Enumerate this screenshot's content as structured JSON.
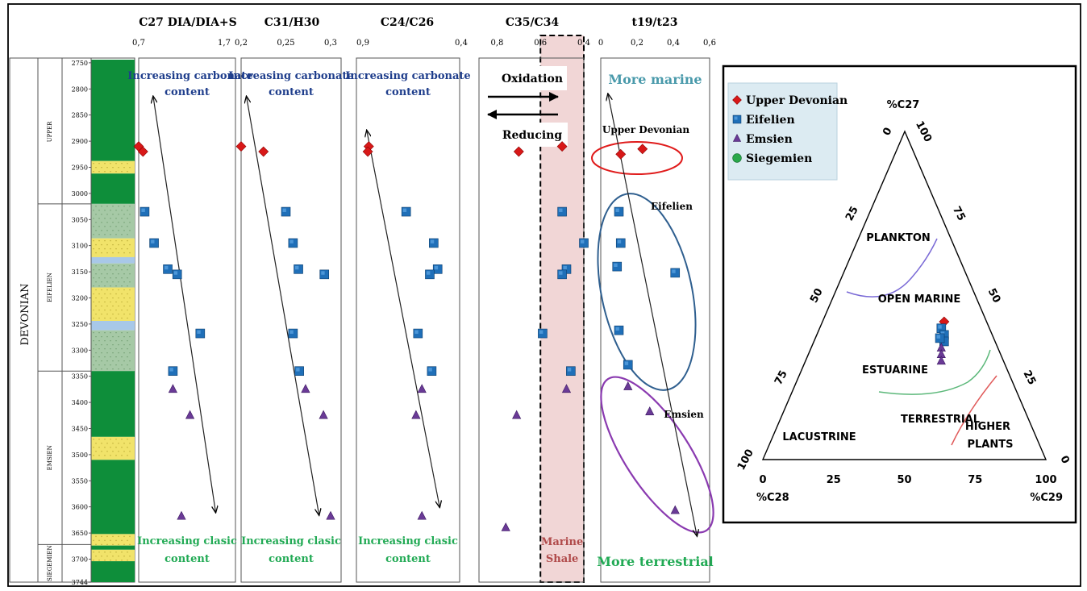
{
  "colors": {
    "upper_devonian": "#d81818",
    "eifelien": "#1f6fb8",
    "emsien": "#6a3a96",
    "siegemien": "#2aa84a",
    "text_blue": "#1f3e8c",
    "text_green": "#22aa55",
    "text_marine": "#4a9aab",
    "strat_green": "#0e8e3a",
    "strat_light": "#a6c9a6",
    "strat_yellow": "#f1e36a",
    "strat_blue": "#a8c8e8",
    "shale_fill": "#f1d6d6",
    "shale_text": "#b04a4a",
    "legend_bg": "#dcebf2",
    "plankton_curve": "#7a6ad6",
    "estuarine_curve": "#5cb87a",
    "higher_plants_curve": "#e05a5a",
    "ellipse_upper": "#e01c1c",
    "ellipse_eifelien": "#2f5f8f",
    "ellipse_emsien": "#8a3ab0"
  },
  "strat_column": {
    "system": "DEVONIAN",
    "stages": [
      {
        "label": "UPPER",
        "from": 2744,
        "to": 3020
      },
      {
        "label": "EIFELIEN",
        "from": 3020,
        "to": 3340
      },
      {
        "label": "EMSIEN",
        "from": 3340,
        "to": 3672
      },
      {
        "label": "SIEGEMIEN",
        "from": 3672,
        "to": 3744
      }
    ],
    "depth_ticks": [
      "2750",
      "2800",
      "2850",
      "2900",
      "2950",
      "3000",
      "3050",
      "3100",
      "3150",
      "3200",
      "3250",
      "3300",
      "3350",
      "3400",
      "3450",
      "3500",
      "3550",
      "3600",
      "3650",
      "3700",
      "3744"
    ],
    "lithology": [
      {
        "from": 2744,
        "to": 2938,
        "type": "green"
      },
      {
        "from": 2938,
        "to": 2962,
        "type": "yellow"
      },
      {
        "from": 2962,
        "to": 3020,
        "type": "green"
      },
      {
        "from": 3020,
        "to": 3086,
        "type": "light"
      },
      {
        "from": 3086,
        "to": 3122,
        "type": "yellow"
      },
      {
        "from": 3122,
        "to": 3134,
        "type": "blue"
      },
      {
        "from": 3134,
        "to": 3180,
        "type": "light"
      },
      {
        "from": 3180,
        "to": 3244,
        "type": "yellow"
      },
      {
        "from": 3244,
        "to": 3262,
        "type": "blue"
      },
      {
        "from": 3262,
        "to": 3340,
        "type": "light"
      },
      {
        "from": 3340,
        "to": 3466,
        "type": "green"
      },
      {
        "from": 3466,
        "to": 3510,
        "type": "yellow"
      },
      {
        "from": 3510,
        "to": 3652,
        "type": "green"
      },
      {
        "from": 3652,
        "to": 3674,
        "type": "yellow"
      },
      {
        "from": 3674,
        "to": 3682,
        "type": "green"
      },
      {
        "from": 3682,
        "to": 3704,
        "type": "yellow"
      },
      {
        "from": 3704,
        "to": 3744,
        "type": "green"
      }
    ]
  },
  "chart_data": [
    {
      "type": "scatter",
      "title": "C27 DIA/DIA+S",
      "tick_labels": [
        "0,7",
        "1,7"
      ],
      "xlim": [
        0.7,
        1.7
      ],
      "top_note": "Increasing carbonate content",
      "bottom_note": "Increasing clasic content",
      "points": [
        {
          "x": 0.7,
          "depth": 2910,
          "group": "upper"
        },
        {
          "x": 0.75,
          "depth": 2920,
          "group": "upper"
        },
        {
          "x": 0.77,
          "depth": 3035,
          "group": "eifelien"
        },
        {
          "x": 0.88,
          "depth": 3095,
          "group": "eifelien"
        },
        {
          "x": 1.04,
          "depth": 3145,
          "group": "eifelien"
        },
        {
          "x": 1.15,
          "depth": 3155,
          "group": "eifelien"
        },
        {
          "x": 1.42,
          "depth": 3268,
          "group": "eifelien"
        },
        {
          "x": 1.1,
          "depth": 3340,
          "group": "eifelien"
        },
        {
          "x": 1.1,
          "depth": 3375,
          "group": "emsien"
        },
        {
          "x": 1.3,
          "depth": 3425,
          "group": "emsien"
        },
        {
          "x": 1.2,
          "depth": 3618,
          "group": "emsien"
        }
      ],
      "arrow": {
        "x1": 0.87,
        "d1": 2815,
        "x2": 1.6,
        "d2": 3610
      }
    },
    {
      "type": "scatter",
      "title": "C31/H30",
      "tick_labels": [
        "0,2",
        "0,25",
        "0,3"
      ],
      "xlim": [
        0.2,
        0.3
      ],
      "top_note": "Increasing carbonate content",
      "bottom_note": "Increasing clasic content",
      "points": [
        {
          "x": 0.2,
          "depth": 2910,
          "group": "upper"
        },
        {
          "x": 0.225,
          "depth": 2920,
          "group": "upper"
        },
        {
          "x": 0.25,
          "depth": 3035,
          "group": "eifelien"
        },
        {
          "x": 0.258,
          "depth": 3095,
          "group": "eifelien"
        },
        {
          "x": 0.264,
          "depth": 3145,
          "group": "eifelien"
        },
        {
          "x": 0.293,
          "depth": 3155,
          "group": "eifelien"
        },
        {
          "x": 0.258,
          "depth": 3268,
          "group": "eifelien"
        },
        {
          "x": 0.265,
          "depth": 3340,
          "group": "eifelien"
        },
        {
          "x": 0.272,
          "depth": 3375,
          "group": "emsien"
        },
        {
          "x": 0.292,
          "depth": 3425,
          "group": "emsien"
        },
        {
          "x": 0.3,
          "depth": 3618,
          "group": "emsien"
        }
      ],
      "arrow": {
        "x1": 0.206,
        "d1": 2815,
        "x2": 0.287,
        "d2": 3615
      }
    },
    {
      "type": "scatter",
      "title": "C24/C26",
      "tick_labels": [
        "0,9",
        "0,4"
      ],
      "xlim": [
        0.9,
        0.4
      ],
      "top_note": "Increasing carbonate content",
      "bottom_note": "Increasing clasic content",
      "points": [
        {
          "x": 0.87,
          "depth": 2910,
          "group": "upper"
        },
        {
          "x": 0.875,
          "depth": 2920,
          "group": "upper"
        },
        {
          "x": 0.68,
          "depth": 3035,
          "group": "eifelien"
        },
        {
          "x": 0.54,
          "depth": 3095,
          "group": "eifelien"
        },
        {
          "x": 0.52,
          "depth": 3145,
          "group": "eifelien"
        },
        {
          "x": 0.56,
          "depth": 3155,
          "group": "eifelien"
        },
        {
          "x": 0.62,
          "depth": 3268,
          "group": "eifelien"
        },
        {
          "x": 0.55,
          "depth": 3340,
          "group": "eifelien"
        },
        {
          "x": 0.6,
          "depth": 3375,
          "group": "emsien"
        },
        {
          "x": 0.63,
          "depth": 3425,
          "group": "emsien"
        },
        {
          "x": 0.6,
          "depth": 3618,
          "group": "emsien"
        }
      ],
      "arrow": {
        "x1": 0.88,
        "d1": 2880,
        "x2": 0.51,
        "d2": 3600
      }
    },
    {
      "type": "scatter",
      "title": "C35/C34",
      "tick_labels": [
        "0,8",
        "0,6",
        "0,4"
      ],
      "xlim": [
        0.85,
        0.4
      ],
      "labels": {
        "oxidation": "Oxidation",
        "reducing": "Reducing",
        "shale": "Marine Shale"
      },
      "shale_range": [
        0.6,
        0.4
      ],
      "points": [
        {
          "x": 0.7,
          "depth": 2920,
          "group": "upper"
        },
        {
          "x": 0.5,
          "depth": 2910,
          "group": "upper"
        },
        {
          "x": 0.5,
          "depth": 3035,
          "group": "eifelien"
        },
        {
          "x": 0.4,
          "depth": 3095,
          "group": "eifelien"
        },
        {
          "x": 0.48,
          "depth": 3145,
          "group": "eifelien"
        },
        {
          "x": 0.5,
          "depth": 3155,
          "group": "eifelien"
        },
        {
          "x": 0.59,
          "depth": 3268,
          "group": "eifelien"
        },
        {
          "x": 0.46,
          "depth": 3340,
          "group": "eifelien"
        },
        {
          "x": 0.48,
          "depth": 3375,
          "group": "emsien"
        },
        {
          "x": 0.71,
          "depth": 3425,
          "group": "emsien"
        },
        {
          "x": 0.76,
          "depth": 3640,
          "group": "emsien"
        }
      ]
    },
    {
      "type": "scatter",
      "title": "t19/t23",
      "tick_labels": [
        "0",
        "0,2",
        "0,4",
        "0,6"
      ],
      "xlim": [
        0,
        0.6
      ],
      "top_note": "More marine",
      "bottom_note": "More terrestrial",
      "group_labels": {
        "upper": "Upper Devonian",
        "eifelien": "Eifelien",
        "emsien": "Emsien"
      },
      "points": [
        {
          "x": 0.11,
          "depth": 2925,
          "group": "upper"
        },
        {
          "x": 0.23,
          "depth": 2915,
          "group": "upper"
        },
        {
          "x": 0.1,
          "depth": 3035,
          "group": "eifelien"
        },
        {
          "x": 0.11,
          "depth": 3095,
          "group": "eifelien"
        },
        {
          "x": 0.09,
          "depth": 3140,
          "group": "eifelien"
        },
        {
          "x": 0.41,
          "depth": 3152,
          "group": "eifelien"
        },
        {
          "x": 0.1,
          "depth": 3262,
          "group": "eifelien"
        },
        {
          "x": 0.15,
          "depth": 3328,
          "group": "eifelien"
        },
        {
          "x": 0.15,
          "depth": 3370,
          "group": "emsien"
        },
        {
          "x": 0.27,
          "depth": 3418,
          "group": "emsien"
        },
        {
          "x": 0.41,
          "depth": 3607,
          "group": "emsien"
        }
      ],
      "arrow": {
        "x1": 0.04,
        "d1": 2810,
        "x2": 0.53,
        "d2": 3655
      }
    },
    {
      "type": "ternary",
      "apex_labels": {
        "top": "%C27",
        "left": "%C28",
        "right": "%C29"
      },
      "tick_values": [
        "0",
        "25",
        "50",
        "75",
        "100"
      ],
      "legend": [
        {
          "name": "Upper Devonian",
          "group": "upper",
          "shape": "diamond"
        },
        {
          "name": "Eifelien",
          "group": "eifelien",
          "shape": "square"
        },
        {
          "name": "Emsien",
          "group": "emsien",
          "shape": "triangle"
        },
        {
          "name": "Siegemien",
          "group": "siegemien",
          "shape": "circle"
        }
      ],
      "region_labels": [
        "PLANKTON",
        "OPEN MARINE",
        "ESTUARINE",
        "TERRESTRIAL",
        "LACUSTRINE",
        "HIGHER",
        "PLANTS"
      ],
      "points": [
        {
          "c27": 42,
          "c28": 15,
          "c29": 43,
          "group": "upper"
        },
        {
          "c27": 40,
          "c28": 17,
          "c29": 43,
          "group": "eifelien"
        },
        {
          "c27": 38,
          "c28": 17,
          "c29": 45,
          "group": "eifelien"
        },
        {
          "c27": 36,
          "c28": 18,
          "c29": 46,
          "group": "eifelien"
        },
        {
          "c27": 37,
          "c28": 19,
          "c29": 44,
          "group": "eifelien"
        },
        {
          "c27": 34,
          "c28": 20,
          "c29": 46,
          "group": "emsien"
        },
        {
          "c27": 32,
          "c28": 21,
          "c29": 47,
          "group": "emsien"
        },
        {
          "c27": 30,
          "c28": 22,
          "c29": 48,
          "group": "emsien"
        }
      ]
    }
  ]
}
